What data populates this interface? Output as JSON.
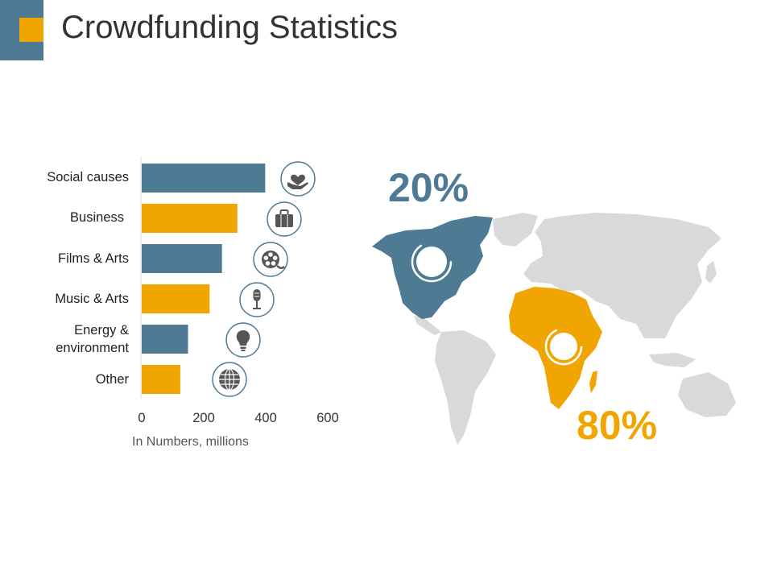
{
  "header": {
    "title": "Crowdfunding Statistics"
  },
  "colors": {
    "blue": "#4f7a93",
    "orange": "#f0a500",
    "gray": "#d9d9d9",
    "icon": "#555555"
  },
  "chart_data": {
    "type": "bar",
    "orientation": "horizontal",
    "categories": [
      "Social causes",
      "Business",
      "Films & Arts",
      "Music & Arts",
      "Energy & environment",
      "Other"
    ],
    "values": [
      400,
      310,
      260,
      220,
      150,
      125
    ],
    "bar_colors": [
      "blue",
      "orange",
      "blue",
      "orange",
      "blue",
      "orange"
    ],
    "icons": [
      "heart-hand-icon",
      "briefcase-icon",
      "film-reel-icon",
      "microphone-icon",
      "lightbulb-icon",
      "globe-icon"
    ],
    "xlabel": "In Numbers, millions",
    "xlim": [
      0,
      600
    ],
    "xticks": [
      0,
      200,
      400,
      600
    ]
  },
  "map": {
    "highlight_a": {
      "region": "North America",
      "value": "20%",
      "color": "blue"
    },
    "highlight_b": {
      "region": "Africa",
      "value": "80%",
      "color": "orange"
    }
  }
}
